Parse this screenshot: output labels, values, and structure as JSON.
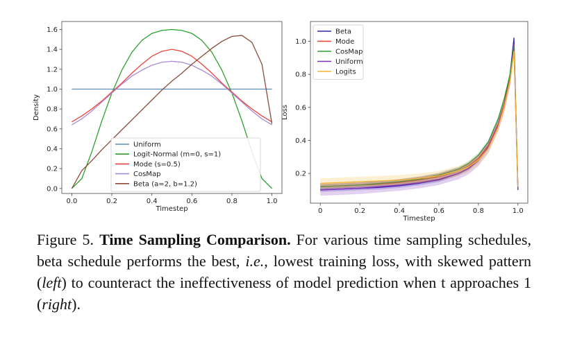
{
  "chart_data": [
    {
      "type": "line",
      "xlabel": "Timestep",
      "ylabel": "Density",
      "xlim": [
        -0.05,
        1.05
      ],
      "ylim": [
        -0.05,
        1.68
      ],
      "xticks": [
        0.0,
        0.2,
        0.4,
        0.6,
        0.8,
        1.0
      ],
      "xtick_labels": [
        "0.0",
        "0.2",
        "0.4",
        "0.6",
        "0.8",
        "1.0"
      ],
      "yticks": [
        0.0,
        0.2,
        0.4,
        0.6,
        0.8,
        1.0,
        1.2,
        1.4,
        1.6
      ],
      "ytick_labels": [
        "0.0",
        "0.2",
        "0.4",
        "0.6",
        "0.8",
        "1.0",
        "1.2",
        "1.4",
        "1.6"
      ],
      "grid": false,
      "legend_position": "lower-center",
      "x": [
        0.0,
        0.05,
        0.1,
        0.15,
        0.2,
        0.25,
        0.3,
        0.35,
        0.4,
        0.45,
        0.5,
        0.55,
        0.6,
        0.65,
        0.7,
        0.75,
        0.8,
        0.85,
        0.9,
        0.95,
        1.0
      ],
      "series": [
        {
          "name": "Uniform",
          "color": "#5b8fbf",
          "values": [
            1.0,
            1.0,
            1.0,
            1.0,
            1.0,
            1.0,
            1.0,
            1.0,
            1.0,
            1.0,
            1.0,
            1.0,
            1.0,
            1.0,
            1.0,
            1.0,
            1.0,
            1.0,
            1.0,
            1.0,
            1.0
          ]
        },
        {
          "name": "Logit-Normal (m=0, s=1)",
          "color": "#2ca02c",
          "values": [
            0.0,
            0.1,
            0.37,
            0.68,
            0.96,
            1.19,
            1.37,
            1.49,
            1.56,
            1.59,
            1.6,
            1.59,
            1.56,
            1.49,
            1.37,
            1.19,
            0.96,
            0.68,
            0.37,
            0.1,
            0.0
          ]
        },
        {
          "name": "Mode (s=0.5)",
          "color": "#e8453c",
          "values": [
            0.67,
            0.73,
            0.8,
            0.88,
            0.97,
            1.06,
            1.16,
            1.25,
            1.33,
            1.38,
            1.4,
            1.38,
            1.33,
            1.25,
            1.16,
            1.06,
            0.97,
            0.88,
            0.8,
            0.73,
            0.67
          ]
        },
        {
          "name": "CosMap",
          "color": "#a78ad8",
          "values": [
            0.64,
            0.7,
            0.78,
            0.87,
            0.96,
            1.05,
            1.13,
            1.19,
            1.24,
            1.27,
            1.28,
            1.27,
            1.24,
            1.19,
            1.13,
            1.05,
            0.96,
            0.87,
            0.78,
            0.7,
            0.64
          ]
        },
        {
          "name": "Beta (a=2, b=1.2)",
          "color": "#8b4a3c",
          "values": [
            0.0,
            0.18,
            0.28,
            0.39,
            0.49,
            0.59,
            0.69,
            0.79,
            0.89,
            0.99,
            1.08,
            1.16,
            1.25,
            1.33,
            1.41,
            1.48,
            1.53,
            1.54,
            1.47,
            1.25,
            0.65
          ]
        }
      ]
    },
    {
      "type": "line",
      "xlabel": "Timestep",
      "ylabel": "Loss",
      "xlim": [
        -0.05,
        1.05
      ],
      "ylim": [
        0.02,
        1.12
      ],
      "xticks": [
        0.0,
        0.2,
        0.4,
        0.6,
        0.8,
        1.0
      ],
      "xtick_labels": [
        "0",
        "0.2",
        "0.4",
        "0.6",
        "0.8",
        "1.0"
      ],
      "yticks": [
        0.2,
        0.4,
        0.6,
        0.8,
        1.0
      ],
      "ytick_labels": [
        "0.2",
        "0.4",
        "0.6",
        "0.8",
        "1.0"
      ],
      "grid": false,
      "legend_position": "top-left",
      "x": [
        0.0,
        0.1,
        0.2,
        0.3,
        0.4,
        0.5,
        0.6,
        0.7,
        0.75,
        0.8,
        0.85,
        0.9,
        0.93,
        0.96,
        0.98,
        1.0
      ],
      "series": [
        {
          "name": "Beta",
          "color": "#2b2ab0",
          "band": 0.012,
          "values": [
            0.1,
            0.105,
            0.11,
            0.115,
            0.125,
            0.14,
            0.16,
            0.2,
            0.23,
            0.28,
            0.36,
            0.5,
            0.62,
            0.8,
            1.02,
            0.1
          ]
        },
        {
          "name": "Mode",
          "color": "#ef3b2c",
          "band": 0.02,
          "values": [
            0.12,
            0.125,
            0.13,
            0.135,
            0.145,
            0.16,
            0.18,
            0.215,
            0.245,
            0.29,
            0.37,
            0.5,
            0.62,
            0.78,
            0.98,
            0.12
          ]
        },
        {
          "name": "CosMap",
          "color": "#2ca02c",
          "band": 0.015,
          "values": [
            0.12,
            0.125,
            0.13,
            0.14,
            0.15,
            0.165,
            0.19,
            0.225,
            0.26,
            0.31,
            0.39,
            0.53,
            0.65,
            0.8,
            0.97,
            0.12
          ]
        },
        {
          "name": "Uniform",
          "color": "#7b2fbe",
          "band": 0.035,
          "values": [
            0.1,
            0.105,
            0.11,
            0.12,
            0.13,
            0.145,
            0.165,
            0.2,
            0.23,
            0.28,
            0.36,
            0.49,
            0.6,
            0.76,
            0.95,
            0.1
          ]
        },
        {
          "name": "Logits",
          "color": "#f2b632",
          "band": 0.03,
          "values": [
            0.14,
            0.145,
            0.15,
            0.155,
            0.16,
            0.17,
            0.185,
            0.215,
            0.24,
            0.28,
            0.35,
            0.48,
            0.6,
            0.76,
            0.94,
            0.12
          ]
        }
      ]
    }
  ],
  "caption": {
    "prefix": "Figure 5.",
    "title": "Time Sampling Comparison.",
    "body_1": "For various time sampling schedules, beta schedule performs the best,",
    "ie": "i.e.",
    "body_2": ", lowest training loss, with skewed pattern (",
    "left": "left",
    "body_3": ") to counteract the ineffectiveness of model prediction when t approaches 1 (",
    "right": "right",
    "body_4": ")."
  }
}
